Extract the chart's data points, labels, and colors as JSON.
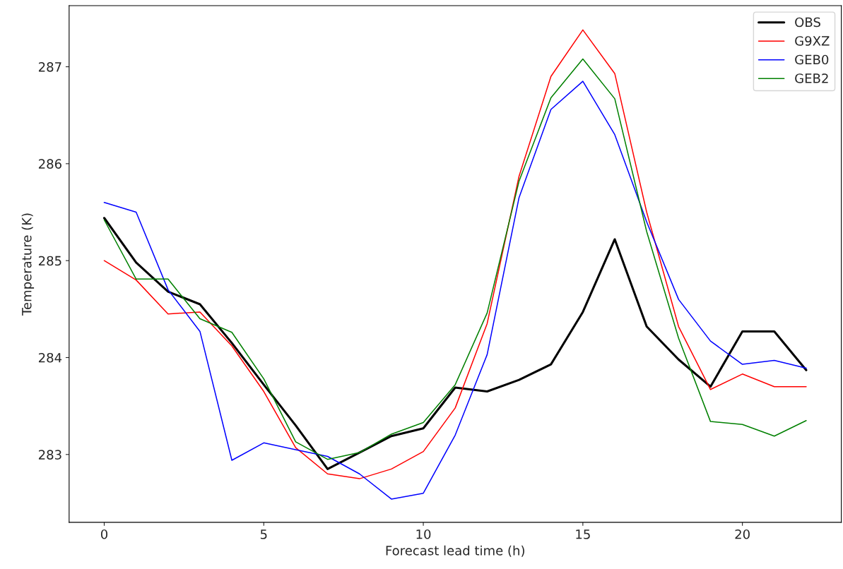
{
  "chart_data": {
    "type": "line",
    "xlabel": "Forecast lead time (h)",
    "ylabel": "Temperature (K)",
    "x": [
      0,
      1,
      2,
      3,
      4,
      5,
      6,
      7,
      8,
      9,
      10,
      11,
      12,
      13,
      14,
      15,
      16,
      17,
      18,
      19,
      20,
      21,
      22
    ],
    "xlim": [
      -1.1,
      23.1
    ],
    "xticks": [
      0,
      5,
      10,
      15,
      20
    ],
    "ylim": [
      282.3,
      287.63
    ],
    "yticks": [
      283,
      284,
      285,
      286,
      287
    ],
    "grid": false,
    "legend": "top right",
    "marker": "none",
    "line_style": "solid",
    "series": [
      {
        "name": "OBS",
        "color": "#000000",
        "values": [
          285.44,
          284.98,
          284.68,
          284.55,
          284.15,
          283.72,
          283.3,
          282.85,
          283.02,
          283.19,
          283.27,
          283.69,
          283.65,
          283.77,
          283.93,
          284.47,
          285.22,
          284.32,
          283.98,
          283.7,
          284.27,
          284.27,
          283.87
        ]
      },
      {
        "name": "G9XZ",
        "color": "#ff0000",
        "values": [
          285.0,
          284.8,
          284.45,
          284.47,
          284.12,
          283.65,
          283.07,
          282.8,
          282.75,
          282.85,
          283.03,
          283.48,
          284.35,
          285.87,
          286.9,
          287.38,
          286.93,
          285.5,
          284.32,
          283.67,
          283.83,
          283.7,
          283.7
        ]
      },
      {
        "name": "GEB0",
        "color": "#0000ff",
        "values": [
          285.6,
          285.5,
          284.7,
          284.27,
          282.94,
          283.12,
          283.05,
          282.98,
          282.8,
          282.54,
          282.6,
          283.2,
          284.03,
          285.65,
          286.56,
          286.85,
          286.3,
          285.4,
          284.6,
          284.17,
          283.93,
          283.97,
          283.89
        ]
      },
      {
        "name": "GEB2",
        "color": "#008000",
        "values": [
          285.42,
          284.81,
          284.81,
          284.4,
          284.26,
          283.78,
          283.13,
          282.95,
          283.02,
          283.21,
          283.33,
          283.72,
          284.46,
          285.82,
          286.68,
          287.08,
          286.67,
          285.3,
          284.2,
          283.34,
          283.31,
          283.19,
          283.35
        ]
      }
    ]
  }
}
